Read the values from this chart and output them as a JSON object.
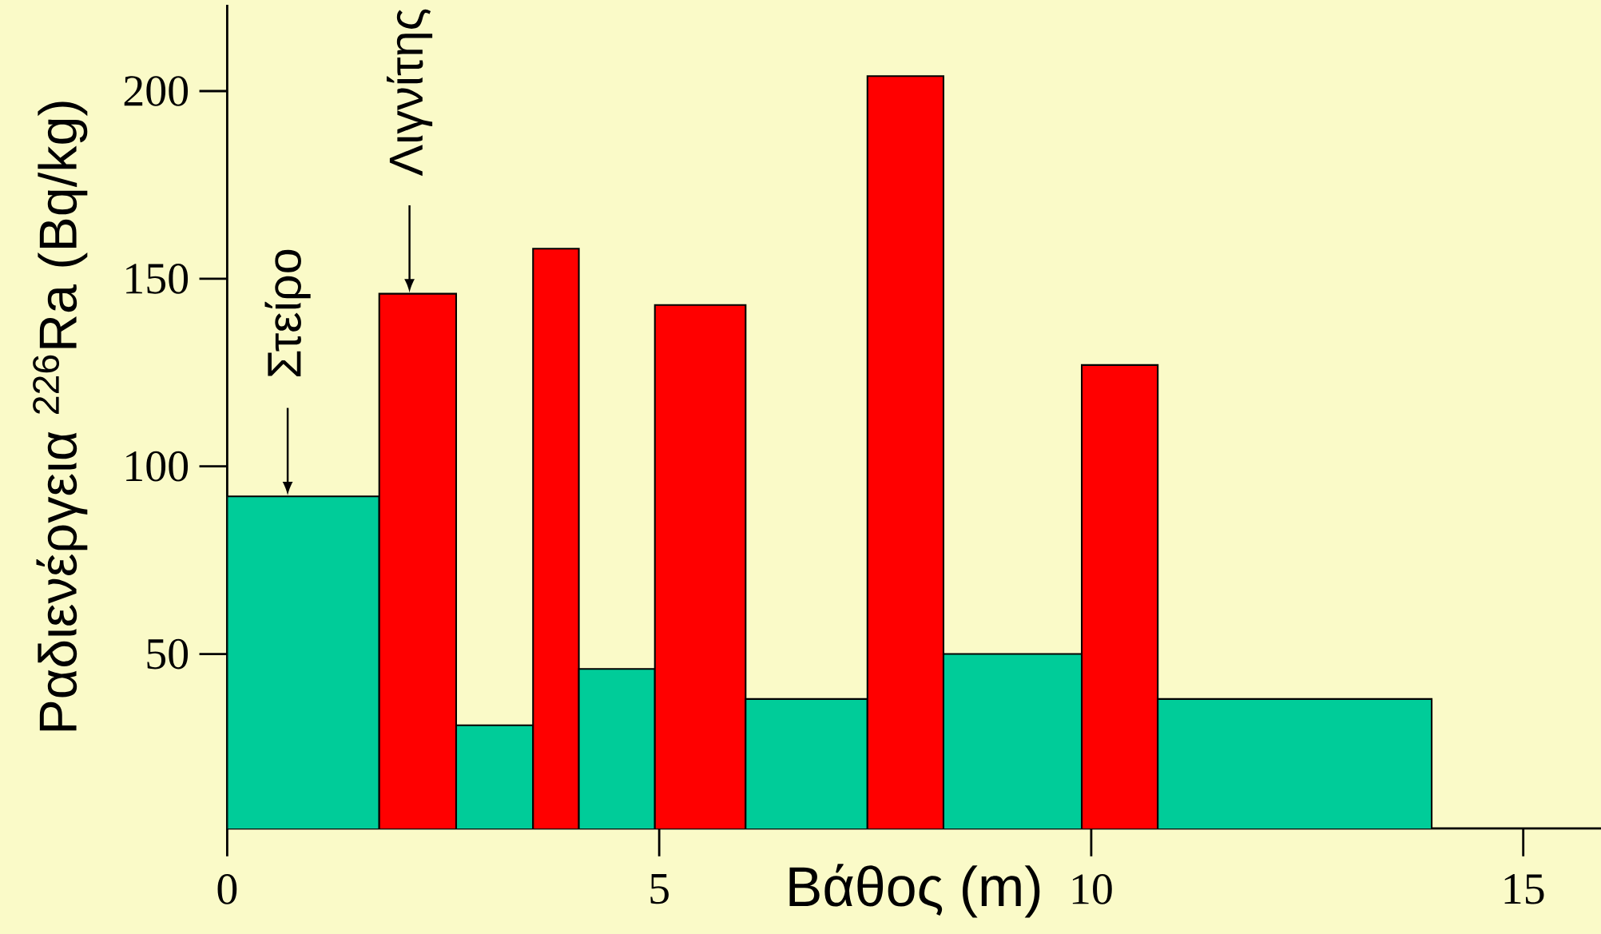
{
  "chart_data": {
    "type": "histogram",
    "xlabel": "Βάθος (m)",
    "ylabel": "Ραδιενέργεια $^{226}$Ra (Bq/kg)",
    "bins": [
      0,
      1.76,
      2.65,
      3.54,
      4.07,
      4.95,
      6.0,
      7.41,
      8.29,
      9.89,
      10.77,
      13.94
    ],
    "values": [
      92,
      146,
      31,
      158,
      46,
      143,
      38,
      204,
      50,
      127,
      38
    ],
    "colors": [
      "#00cc99",
      "#ff0000",
      "#00cc99",
      "#ff0000",
      "#00cc99",
      "#ff0000",
      "#00cc99",
      "#ff0000",
      "#00cc99",
      "#ff0000",
      "#00cc99"
    ],
    "xlim": [
      0,
      15.9
    ],
    "ylim": [
      3.5,
      223
    ],
    "xticks": [
      0,
      5,
      10,
      15
    ],
    "yticks": [
      50,
      100,
      150,
      200
    ],
    "annotations": [
      {
        "text": "Στείρο",
        "x": 0.7,
        "y": 92
      },
      {
        "text": "Λιγνίτης",
        "x": 2.11,
        "y": 146
      }
    ]
  }
}
